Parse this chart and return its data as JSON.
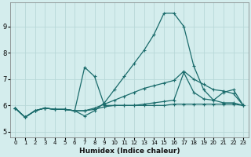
{
  "xlabel": "Humidex (Indice chaleur)",
  "bg_color": "#d4eded",
  "grid_color": "#b8d8d8",
  "line_color": "#1a6b6b",
  "xlim": [
    -0.5,
    23.5
  ],
  "ylim": [
    4.8,
    9.9
  ],
  "xticks": [
    0,
    1,
    2,
    3,
    4,
    5,
    6,
    7,
    8,
    9,
    10,
    11,
    12,
    13,
    14,
    15,
    16,
    17,
    18,
    19,
    20,
    21,
    22,
    23
  ],
  "yticks": [
    5,
    6,
    7,
    8,
    9
  ],
  "line1_x": [
    0,
    1,
    2,
    3,
    4,
    5,
    6,
    7,
    8,
    9,
    10,
    11,
    12,
    13,
    14,
    15,
    16,
    17,
    18,
    19,
    20,
    21,
    22,
    23
  ],
  "line1_y": [
    5.9,
    5.55,
    5.8,
    5.9,
    5.85,
    5.85,
    5.8,
    5.6,
    5.8,
    6.1,
    6.6,
    7.1,
    7.6,
    8.1,
    8.7,
    9.5,
    9.5,
    9.0,
    7.5,
    6.6,
    6.2,
    6.1,
    6.1,
    6.0
  ],
  "line2_x": [
    0,
    1,
    2,
    3,
    4,
    5,
    6,
    7,
    8,
    9,
    10,
    11,
    12,
    13,
    14,
    15,
    16,
    17,
    18,
    19,
    20,
    21,
    22,
    23
  ],
  "line2_y": [
    5.9,
    5.55,
    5.8,
    5.9,
    5.85,
    5.85,
    5.8,
    7.45,
    7.1,
    6.0,
    6.0,
    6.0,
    6.0,
    6.05,
    6.1,
    6.15,
    6.2,
    7.25,
    6.5,
    6.25,
    6.2,
    6.5,
    6.6,
    6.0
  ],
  "line3_x": [
    0,
    1,
    2,
    3,
    4,
    5,
    6,
    7,
    8,
    9,
    10,
    11,
    12,
    13,
    14,
    15,
    16,
    17,
    18,
    19,
    20,
    21,
    22,
    23
  ],
  "line3_y": [
    5.9,
    5.55,
    5.8,
    5.9,
    5.85,
    5.85,
    5.8,
    5.8,
    5.9,
    6.05,
    6.2,
    6.35,
    6.5,
    6.65,
    6.75,
    6.85,
    6.95,
    7.3,
    7.0,
    6.8,
    6.6,
    6.55,
    6.45,
    6.0
  ],
  "line4_x": [
    0,
    1,
    2,
    3,
    4,
    5,
    6,
    7,
    8,
    9,
    10,
    11,
    12,
    13,
    14,
    15,
    16,
    17,
    18,
    19,
    20,
    21,
    22,
    23
  ],
  "line4_y": [
    5.9,
    5.55,
    5.8,
    5.9,
    5.85,
    5.85,
    5.8,
    5.8,
    5.85,
    5.95,
    6.0,
    6.0,
    6.0,
    6.0,
    6.0,
    6.0,
    6.05,
    6.05,
    6.05,
    6.05,
    6.05,
    6.05,
    6.05,
    6.0
  ]
}
